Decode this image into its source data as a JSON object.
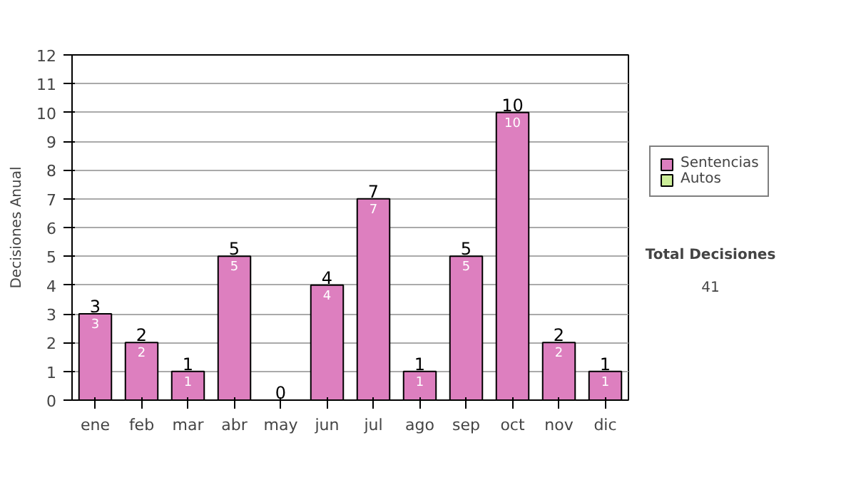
{
  "chart_data": {
    "type": "bar",
    "ylabel": "Decisiones Anual",
    "categories": [
      "ene",
      "feb",
      "mar",
      "abr",
      "may",
      "jun",
      "jul",
      "ago",
      "sep",
      "oct",
      "nov",
      "dic"
    ],
    "series": [
      {
        "name": "Sentencias",
        "color": "#dd7fbf",
        "values": [
          3,
          2,
          1,
          5,
          0,
          4,
          7,
          1,
          5,
          10,
          2,
          1
        ],
        "value_labels": [
          "3",
          "2",
          "1",
          "5",
          null,
          "4",
          "7",
          "1",
          "5",
          "10",
          "2",
          "1"
        ]
      },
      {
        "name": "Autos",
        "color": "#ccee99",
        "values": [
          0,
          0,
          0,
          0,
          0,
          0,
          0,
          0,
          0,
          0,
          0,
          0
        ]
      }
    ],
    "stacked": true,
    "totals": [
      "3",
      "2",
      "1",
      "5",
      "0",
      "4",
      "7",
      "1",
      "5",
      "10",
      "2",
      "1"
    ],
    "ylim": [
      0,
      12
    ],
    "yticks": [
      0,
      1,
      2,
      3,
      4,
      5,
      6,
      7,
      8,
      9,
      10,
      11,
      12
    ],
    "grid": "y",
    "legend": "right",
    "annotations": [
      "Total Decisiones",
      "41"
    ]
  }
}
